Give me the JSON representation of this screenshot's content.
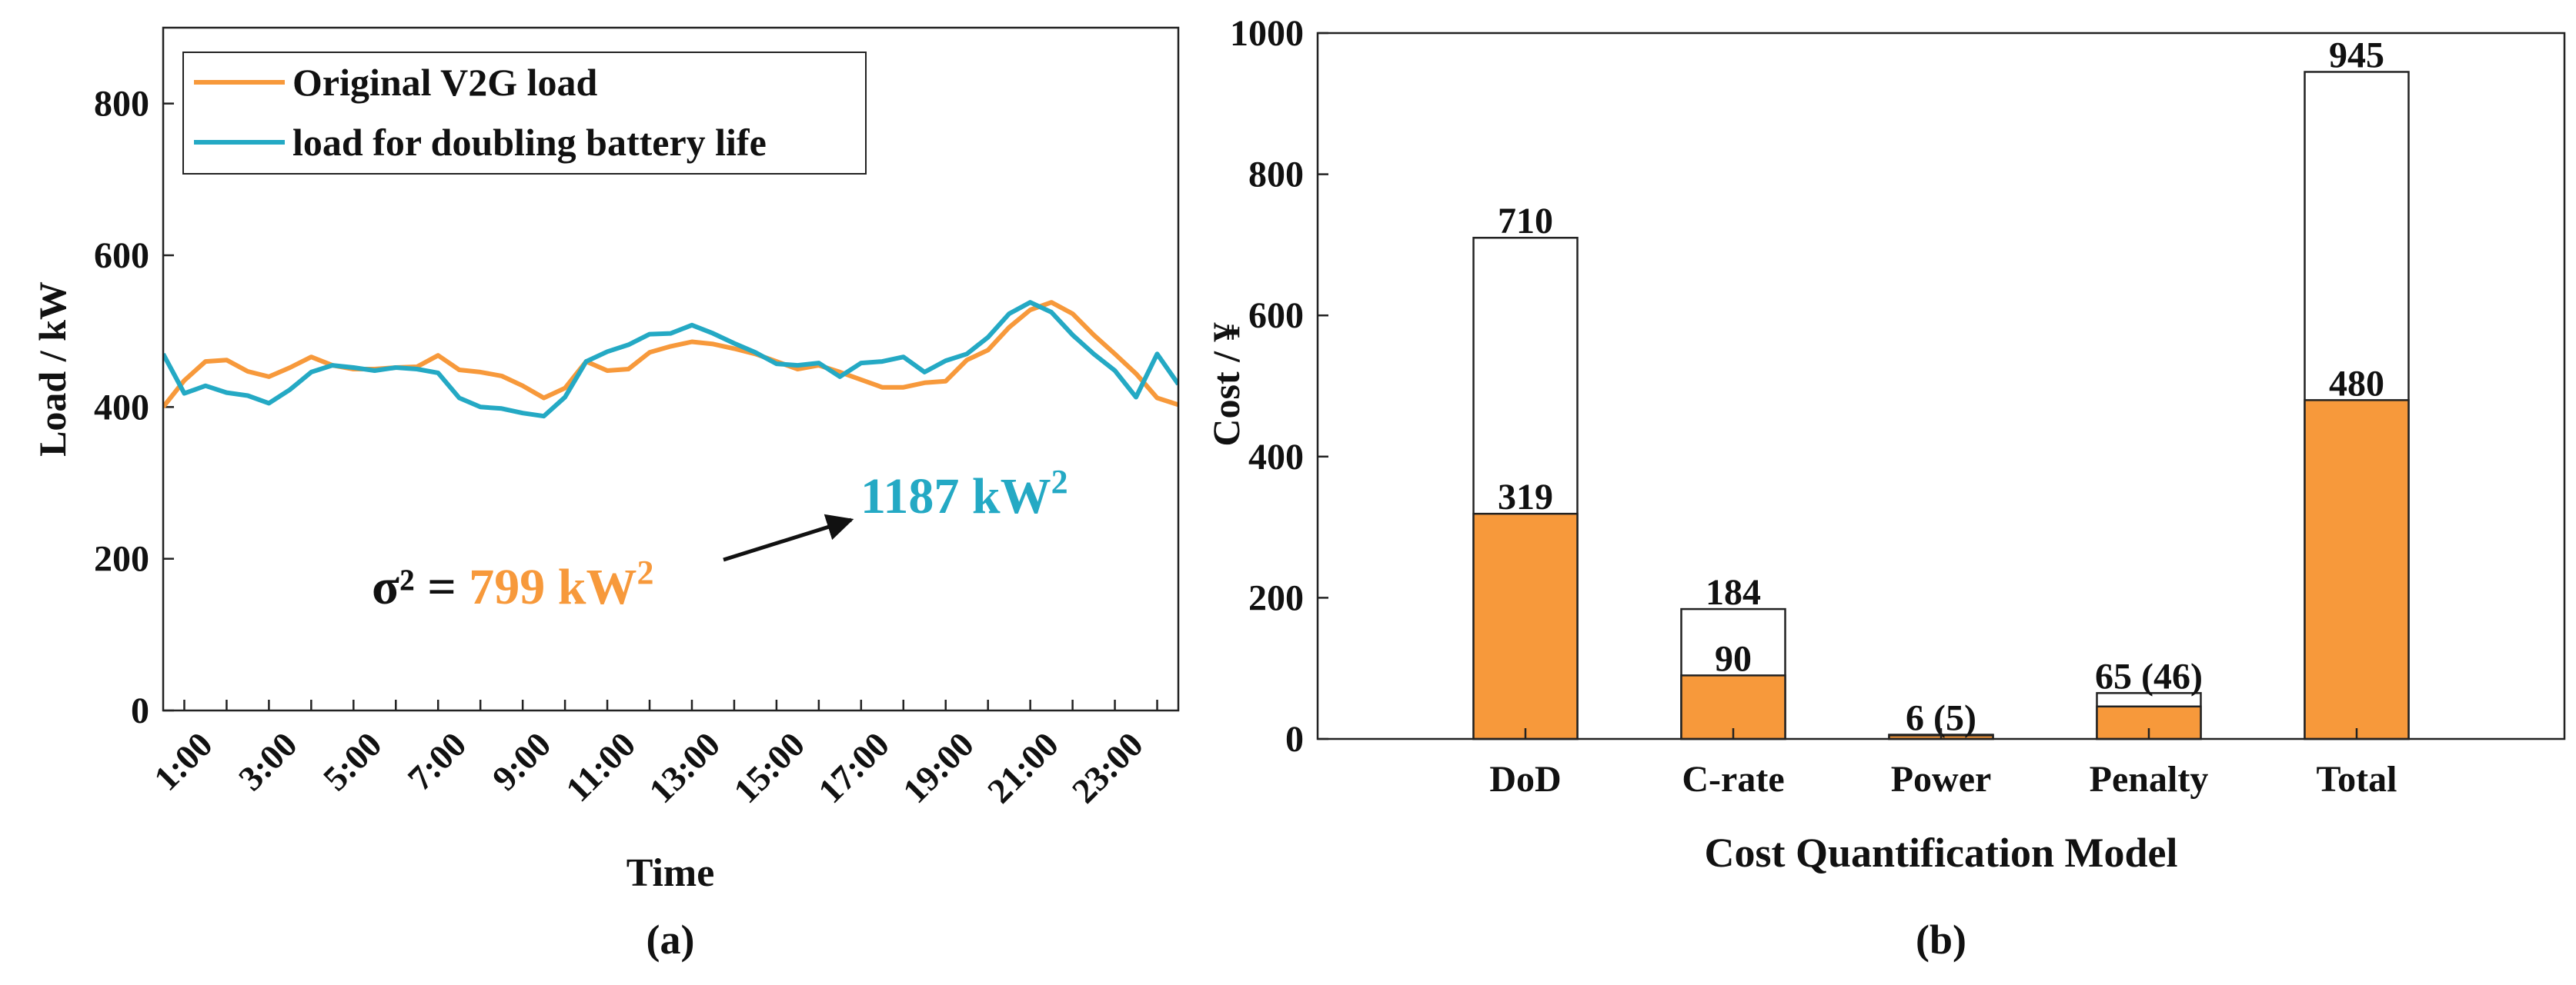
{
  "colors": {
    "orange": "#F7993B",
    "blue": "#24A9C4",
    "bar_fill": "#F7993B",
    "bar_stroke": "#222222",
    "axis": "#222222",
    "text": "#111111"
  },
  "chart_data": [
    {
      "type": "line",
      "panel_label": "(a)",
      "title": "",
      "xlabel": "Time",
      "ylabel": "Load / kW",
      "xlim": [
        0.5,
        24.5
      ],
      "ylim": [
        0,
        900
      ],
      "yticks": [
        0,
        200,
        400,
        600,
        800
      ],
      "x_tick_positions": [
        1,
        3,
        5,
        7,
        9,
        11,
        13,
        15,
        17,
        19,
        21,
        23
      ],
      "x_tick_labels": [
        "1:00",
        "3:00",
        "5:00",
        "7:00",
        "9:00",
        "11:00",
        "13:00",
        "15:00",
        "17:00",
        "19:00",
        "21:00",
        "23:00"
      ],
      "legend_position": "top-left",
      "x": [
        0.5,
        1,
        1.5,
        2,
        2.5,
        3,
        3.5,
        4,
        4.5,
        5,
        5.5,
        6,
        6.5,
        7,
        7.5,
        8,
        8.5,
        9,
        9.5,
        10,
        10.5,
        11,
        11.5,
        12,
        12.5,
        13,
        13.5,
        14,
        14.5,
        15,
        15.5,
        16,
        16.5,
        17,
        17.5,
        18,
        18.5,
        19,
        19.5,
        20,
        20.5,
        21,
        21.5,
        22,
        22.5,
        23,
        23.5,
        24,
        24.5
      ],
      "series": [
        {
          "name": "Original V2G load",
          "color_key": "orange",
          "values": [
            400,
            435,
            460,
            462,
            447,
            440,
            452,
            466,
            455,
            450,
            450,
            452,
            453,
            468,
            449,
            446,
            441,
            428,
            412,
            425,
            460,
            448,
            450,
            472,
            480,
            486,
            483,
            477,
            470,
            460,
            450,
            455,
            446,
            436,
            426,
            426,
            432,
            434,
            462,
            475,
            505,
            528,
            538,
            523,
            495,
            470,
            444,
            412,
            403
          ]
        },
        {
          "name": "load for doubling battery life",
          "color_key": "blue",
          "values": [
            470,
            418,
            428,
            419,
            415,
            405,
            423,
            446,
            455,
            452,
            448,
            452,
            450,
            445,
            412,
            400,
            398,
            392,
            388,
            413,
            460,
            473,
            482,
            496,
            497,
            508,
            497,
            484,
            472,
            457,
            455,
            458,
            440,
            458,
            460,
            466,
            446,
            461,
            470,
            492,
            523,
            538,
            525,
            495,
            470,
            448,
            413,
            470,
            430
          ]
        }
      ],
      "annotation": {
        "sigma_prefix": "σ² = ",
        "original_variance": "799 kW",
        "doubled_variance": "1187 kW",
        "superscript": "2"
      }
    },
    {
      "type": "bar",
      "panel_label": "(b)",
      "title": "",
      "xlabel": "Cost Quantification Model",
      "ylabel": "Cost / ¥",
      "ylim": [
        0,
        1000
      ],
      "yticks": [
        0,
        200,
        400,
        600,
        800,
        1000
      ],
      "categories": [
        "DoD",
        "C-rate",
        "Power",
        "Penalty",
        "Total"
      ],
      "series": [
        {
          "name": "Original V2G load",
          "values": [
            319,
            90,
            5,
            46,
            480
          ]
        },
        {
          "name": "Load for doubling battery life",
          "values": [
            710,
            184,
            6,
            65,
            945
          ]
        }
      ],
      "data_labels": {
        "outer": [
          "710",
          "184",
          "6 (5)",
          "65 (46)",
          "945"
        ],
        "inner": [
          "319",
          "90",
          "",
          "",
          "480"
        ]
      }
    }
  ]
}
